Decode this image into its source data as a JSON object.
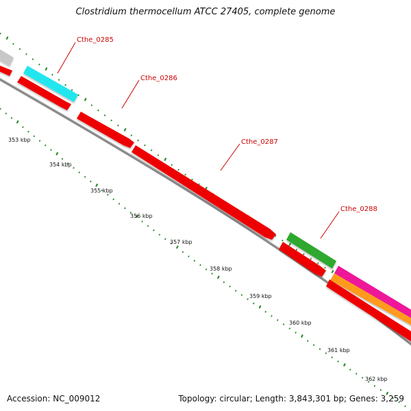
{
  "title": "Clostridium thermocellum ATCC 27405, complete genome",
  "footer": {
    "accession": "Accession: NC_009012",
    "summary": "Topology: circular; Length: 3,843,301 bp; Genes: 3,259"
  },
  "genes": [
    {
      "label": "Cthe_0285",
      "color": "#e00000"
    },
    {
      "label": "Cthe_0286",
      "color": "#e00000"
    },
    {
      "label": "Cthe_0287",
      "color": "#e00000"
    },
    {
      "label": "Cthe_0288",
      "color": "#e00000"
    }
  ],
  "ticks": [
    "353 kbp",
    "354 kbp",
    "355 kbp",
    "356 kbp",
    "357 kbp",
    "358 kbp",
    "359 kbp",
    "360 kbp",
    "361 kbp",
    "362 kbp"
  ],
  "colors": {
    "backbone": "#8a8a8a",
    "tick": "#2e8b2e",
    "cds_red": "#ee0000",
    "cds_cyan": "#22e6ee",
    "cds_grey": "#c8c8c8",
    "cds_green": "#2fa82f",
    "cds_magenta": "#ee1499",
    "cds_orange": "#ff9a1a",
    "label_red": "#cc0000"
  }
}
